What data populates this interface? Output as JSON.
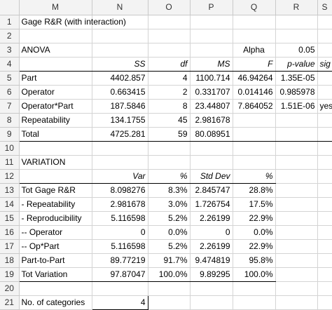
{
  "columns": [
    "M",
    "N",
    "O",
    "P",
    "Q",
    "R",
    "S"
  ],
  "rows": {
    "1": {
      "M": "Gage R&R (with interaction)"
    },
    "3": {
      "M": "ANOVA",
      "Q": "Alpha",
      "R": "0.05"
    },
    "4": {
      "N": "SS",
      "O": "df",
      "P": "MS",
      "Q": "F",
      "R": "p-value",
      "S": "sig"
    },
    "5": {
      "M": "Part",
      "N": "4402.857",
      "O": "4",
      "P": "1100.714",
      "Q": "46.94264",
      "R": "1.35E-05",
      "S": ""
    },
    "6": {
      "M": "Operator",
      "N": "0.663415",
      "O": "2",
      "P": "0.331707",
      "Q": "0.014146",
      "R": "0.985978",
      "S": ""
    },
    "7": {
      "M": "Operator*Part",
      "N": "187.5846",
      "O": "8",
      "P": "23.44807",
      "Q": "7.864052",
      "R": "1.51E-06",
      "S": "yes"
    },
    "8": {
      "M": "Repeatability",
      "N": "134.1755",
      "O": "45",
      "P": "2.981678"
    },
    "9": {
      "M": "Total",
      "N": "4725.281",
      "O": "59",
      "P": "80.08951"
    },
    "11": {
      "M": "VARIATION"
    },
    "12": {
      "N": "Var",
      "O": "%",
      "P": "Std Dev",
      "Q": "%"
    },
    "13": {
      "M": "Tot Gage R&R",
      "N": "8.098276",
      "O": "8.3%",
      "P": "2.845747",
      "Q": "28.8%"
    },
    "14": {
      "M": "- Repeatability",
      "N": "2.981678",
      "O": "3.0%",
      "P": "1.726754",
      "Q": "17.5%"
    },
    "15": {
      "M": "- Reproducibility",
      "N": "5.116598",
      "O": "5.2%",
      "P": "2.26199",
      "Q": "22.9%"
    },
    "16": {
      "M": "-- Operator",
      "N": "0",
      "O": "0.0%",
      "P": "0",
      "Q": "0.0%"
    },
    "17": {
      "M": "-- Op*Part",
      "N": "5.116598",
      "O": "5.2%",
      "P": "2.26199",
      "Q": "22.9%"
    },
    "18": {
      "M": "Part-to-Part",
      "N": "89.77219",
      "O": "91.7%",
      "P": "9.474819",
      "Q": "95.8%"
    },
    "19": {
      "M": "Tot Variation",
      "N": "97.87047",
      "O": "100.0%",
      "P": "9.89295",
      "Q": "100.0%"
    },
    "21": {
      "M": "No. of categories",
      "N": "4"
    }
  }
}
